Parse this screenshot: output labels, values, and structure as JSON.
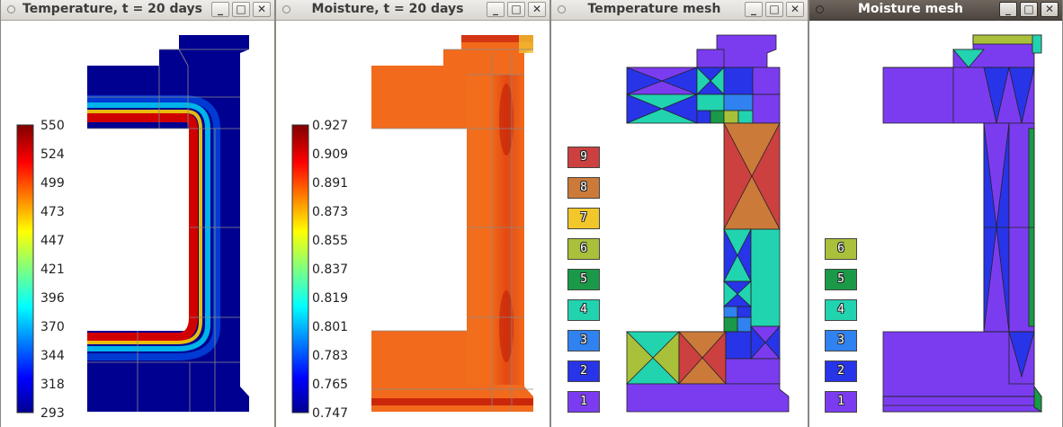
{
  "windows": [
    {
      "title": "Temperature, t = 20 days"
    },
    {
      "title": "Moisture, t = 20 days"
    },
    {
      "title": "Temperature mesh"
    },
    {
      "title": "Moisture mesh"
    }
  ],
  "buttons": {
    "minimize": "_",
    "maximize": "□",
    "close": "✕"
  },
  "temperature_scale": {
    "ticks": [
      "550",
      "524",
      "499",
      "473",
      "447",
      "421",
      "396",
      "370",
      "344",
      "318",
      "293"
    ],
    "min": 293,
    "max": 550
  },
  "moisture_scale": {
    "ticks": [
      "0.927",
      "0.909",
      "0.891",
      "0.873",
      "0.855",
      "0.837",
      "0.819",
      "0.801",
      "0.783",
      "0.765",
      "0.747"
    ],
    "min": 0.747,
    "max": 0.927
  },
  "temperature_mesh_legend": [
    {
      "label": "9",
      "color": "#cc4040"
    },
    {
      "label": "8",
      "color": "#cc7a3a"
    },
    {
      "label": "7",
      "color": "#f2c72a"
    },
    {
      "label": "6",
      "color": "#a9c03a"
    },
    {
      "label": "5",
      "color": "#1a9a48"
    },
    {
      "label": "4",
      "color": "#22d3b0"
    },
    {
      "label": "3",
      "color": "#2f82f0"
    },
    {
      "label": "2",
      "color": "#2834e8"
    },
    {
      "label": "1",
      "color": "#7b3cf0"
    }
  ],
  "moisture_mesh_legend": [
    {
      "label": "6",
      "color": "#a9c03a"
    },
    {
      "label": "5",
      "color": "#1a9a48"
    },
    {
      "label": "4",
      "color": "#22d3b0"
    },
    {
      "label": "3",
      "color": "#2f82f0"
    },
    {
      "label": "2",
      "color": "#2834e8"
    },
    {
      "label": "1",
      "color": "#7b3cf0"
    }
  ]
}
